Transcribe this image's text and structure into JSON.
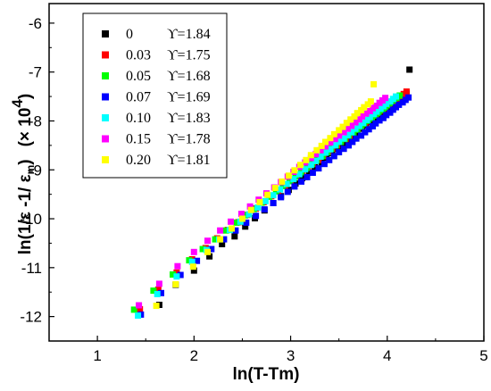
{
  "chart_data": {
    "type": "scatter",
    "title": "",
    "xlabel": "ln(T-Tm)",
    "ylabel": {
      "main": "ln(1/ε -1/ ε",
      "sub": "m",
      "close": ")",
      "multiplier": "(× 10",
      "exponent": "4",
      "multiplier_close": ")"
    },
    "xlim": [
      0.5,
      5
    ],
    "ylim": [
      -12.5,
      -5.6
    ],
    "xticks": [
      1,
      2,
      3,
      4,
      5
    ],
    "yticks": [
      -12,
      -11,
      -10,
      -9,
      -8,
      -7,
      -6
    ],
    "grid": false,
    "legend_position": "top-left",
    "series": [
      {
        "name": "0",
        "gamma": "ϒ=1.84",
        "color": "#000000",
        "x": [
          1.64,
          1.81,
          2.0,
          2.16,
          2.29,
          2.42,
          2.53,
          2.63,
          2.73,
          2.82,
          2.9,
          2.98,
          3.05,
          3.12,
          3.19,
          3.25,
          3.32,
          3.37,
          3.43,
          3.49,
          3.54,
          3.59,
          3.64,
          3.69,
          3.74,
          3.78,
          3.83,
          3.87,
          3.92,
          3.96,
          4.0,
          4.04,
          4.08,
          4.12,
          4.16,
          4.2,
          4.23
        ],
        "y": [
          -11.76,
          -11.35,
          -11.06,
          -10.77,
          -10.52,
          -10.36,
          -10.16,
          -9.99,
          -9.83,
          -9.68,
          -9.54,
          -9.41,
          -9.28,
          -9.17,
          -9.06,
          -8.95,
          -8.85,
          -8.75,
          -8.66,
          -8.57,
          -8.48,
          -8.4,
          -8.32,
          -8.24,
          -8.16,
          -8.09,
          -8.02,
          -7.95,
          -7.88,
          -7.81,
          -7.75,
          -7.68,
          -7.62,
          -7.56,
          -7.5,
          -7.44,
          -6.95
        ]
      },
      {
        "name": "0.03",
        "gamma": "ϒ=1.75",
        "color": "#ff0000",
        "x": [
          1.44,
          1.63,
          1.82,
          1.98,
          2.12,
          2.24,
          2.35,
          2.46,
          2.55,
          2.64,
          2.72,
          2.8,
          2.87,
          2.94,
          3.0,
          3.06,
          3.12,
          3.18,
          3.23,
          3.29,
          3.34,
          3.39,
          3.43,
          3.48,
          3.52,
          3.57,
          3.61,
          3.65,
          3.69,
          3.73,
          3.77,
          3.8,
          3.84,
          3.88,
          3.91,
          3.95,
          3.98,
          4.02,
          4.05,
          4.08,
          4.11,
          4.14,
          4.17,
          4.2
        ],
        "y": [
          -11.85,
          -11.45,
          -11.1,
          -10.83,
          -10.6,
          -10.4,
          -10.23,
          -10.07,
          -9.92,
          -9.79,
          -9.66,
          -9.54,
          -9.43,
          -9.33,
          -9.23,
          -9.14,
          -9.05,
          -8.96,
          -8.88,
          -8.8,
          -8.72,
          -8.64,
          -8.57,
          -8.5,
          -8.43,
          -8.37,
          -8.3,
          -8.24,
          -8.18,
          -8.12,
          -8.06,
          -8.01,
          -7.95,
          -7.89,
          -7.84,
          -7.79,
          -7.74,
          -7.68,
          -7.63,
          -7.59,
          -7.54,
          -7.49,
          -7.45,
          -7.4
        ]
      },
      {
        "name": "0.05",
        "gamma": "ϒ=1.68",
        "color": "#00ff00",
        "x": [
          1.38,
          1.58,
          1.78,
          1.95,
          2.09,
          2.22,
          2.33,
          2.44,
          2.53,
          2.62,
          2.7,
          2.78,
          2.85,
          2.92,
          2.99,
          3.05,
          3.11,
          3.17,
          3.22,
          3.27,
          3.33,
          3.38,
          3.42,
          3.47,
          3.52,
          3.56,
          3.6,
          3.65,
          3.69,
          3.73,
          3.76,
          3.8,
          3.84,
          3.88,
          3.91,
          3.95,
          3.98,
          4.01,
          4.04,
          4.07,
          4.1,
          4.13
        ],
        "y": [
          -11.86,
          -11.47,
          -11.14,
          -10.85,
          -10.62,
          -10.42,
          -10.24,
          -10.08,
          -9.93,
          -9.8,
          -9.67,
          -9.55,
          -9.44,
          -9.33,
          -9.23,
          -9.14,
          -9.05,
          -8.96,
          -8.88,
          -8.8,
          -8.72,
          -8.64,
          -8.57,
          -8.5,
          -8.43,
          -8.37,
          -8.3,
          -8.24,
          -8.18,
          -8.12,
          -8.06,
          -8.0,
          -7.95,
          -7.89,
          -7.84,
          -7.78,
          -7.73,
          -7.68,
          -7.63,
          -7.58,
          -7.53,
          -7.48
        ]
      },
      {
        "name": "0.07",
        "gamma": "ϒ=1.69",
        "color": "#0000ff",
        "x": [
          1.45,
          1.66,
          1.86,
          2.03,
          2.18,
          2.31,
          2.43,
          2.54,
          2.64,
          2.73,
          2.82,
          2.9,
          2.97,
          3.04,
          3.11,
          3.17,
          3.23,
          3.29,
          3.35,
          3.4,
          3.45,
          3.5,
          3.55,
          3.6,
          3.64,
          3.68,
          3.73,
          3.77,
          3.81,
          3.85,
          3.88,
          3.92,
          3.96,
          3.99,
          4.03,
          4.06,
          4.09,
          4.12,
          4.16,
          4.19,
          4.22
        ],
        "y": [
          -11.96,
          -11.52,
          -11.15,
          -10.86,
          -10.62,
          -10.42,
          -10.24,
          -10.08,
          -9.94,
          -9.81,
          -9.68,
          -9.56,
          -9.45,
          -9.34,
          -9.24,
          -9.15,
          -9.06,
          -8.97,
          -8.88,
          -8.8,
          -8.72,
          -8.64,
          -8.57,
          -8.5,
          -8.43,
          -8.36,
          -8.3,
          -8.23,
          -8.17,
          -8.11,
          -8.05,
          -7.99,
          -7.94,
          -7.88,
          -7.83,
          -7.77,
          -7.72,
          -7.67,
          -7.62,
          -7.57,
          -7.52
        ]
      },
      {
        "name": "0.10",
        "gamma": "ϒ=1.83",
        "color": "#00ffff",
        "x": [
          1.42,
          1.62,
          1.82,
          1.98,
          2.13,
          2.26,
          2.37,
          2.48,
          2.57,
          2.66,
          2.74,
          2.82,
          2.89,
          2.96,
          3.03,
          3.09,
          3.15,
          3.21,
          3.26,
          3.31,
          3.36,
          3.41,
          3.46,
          3.5,
          3.55,
          3.59,
          3.63,
          3.67,
          3.71,
          3.75,
          3.79,
          3.82,
          3.86,
          3.89,
          3.93,
          3.96,
          3.99,
          4.03,
          4.06,
          4.09
        ],
        "y": [
          -11.98,
          -11.54,
          -11.18,
          -10.88,
          -10.64,
          -10.42,
          -10.23,
          -10.06,
          -9.91,
          -9.77,
          -9.64,
          -9.52,
          -9.4,
          -9.29,
          -9.19,
          -9.09,
          -8.99,
          -8.9,
          -8.82,
          -8.73,
          -8.65,
          -8.58,
          -8.5,
          -8.43,
          -8.36,
          -8.29,
          -8.23,
          -8.16,
          -8.1,
          -8.04,
          -7.98,
          -7.92,
          -7.86,
          -7.81,
          -7.75,
          -7.7,
          -7.65,
          -7.6,
          -7.55,
          -7.5
        ]
      },
      {
        "name": "0.15",
        "gamma": "ϒ=1.78",
        "color": "#ff00ff",
        "x": [
          1.43,
          1.64,
          1.83,
          2.0,
          2.14,
          2.27,
          2.38,
          2.49,
          2.58,
          2.67,
          2.75,
          2.83,
          2.9,
          2.97,
          3.03,
          3.09,
          3.15,
          3.21,
          3.26,
          3.31,
          3.36,
          3.41,
          3.46,
          3.5,
          3.55,
          3.59,
          3.63,
          3.67,
          3.71,
          3.74,
          3.78,
          3.82,
          3.85,
          3.88,
          3.92,
          3.95,
          3.98
        ],
        "y": [
          -11.77,
          -11.33,
          -10.97,
          -10.68,
          -10.45,
          -10.24,
          -10.06,
          -9.9,
          -9.75,
          -9.61,
          -9.48,
          -9.36,
          -9.25,
          -9.14,
          -9.04,
          -8.94,
          -8.85,
          -8.76,
          -8.68,
          -8.6,
          -8.52,
          -8.44,
          -8.37,
          -8.3,
          -8.23,
          -8.16,
          -8.1,
          -8.03,
          -7.97,
          -7.91,
          -7.85,
          -7.8,
          -7.74,
          -7.69,
          -7.63,
          -7.58,
          -7.53
        ]
      },
      {
        "name": "0.20",
        "gamma": "ϒ=1.81",
        "color": "#ffff00",
        "x": [
          1.61,
          1.81,
          1.99,
          2.14,
          2.27,
          2.39,
          2.5,
          2.59,
          2.68,
          2.76,
          2.84,
          2.91,
          2.98,
          3.04,
          3.1,
          3.16,
          3.21,
          3.27,
          3.32,
          3.36,
          3.41,
          3.45,
          3.5,
          3.54,
          3.58,
          3.62,
          3.66,
          3.69,
          3.73,
          3.76,
          3.8,
          3.83,
          3.86
        ],
        "y": [
          -11.78,
          -11.34,
          -10.98,
          -10.68,
          -10.42,
          -10.2,
          -10.0,
          -9.82,
          -9.66,
          -9.51,
          -9.37,
          -9.24,
          -9.12,
          -9.01,
          -8.9,
          -8.8,
          -8.7,
          -8.6,
          -8.51,
          -8.43,
          -8.35,
          -8.27,
          -8.19,
          -8.12,
          -8.04,
          -7.97,
          -7.91,
          -7.84,
          -7.78,
          -7.72,
          -7.66,
          -7.6,
          -7.25
        ]
      }
    ]
  }
}
